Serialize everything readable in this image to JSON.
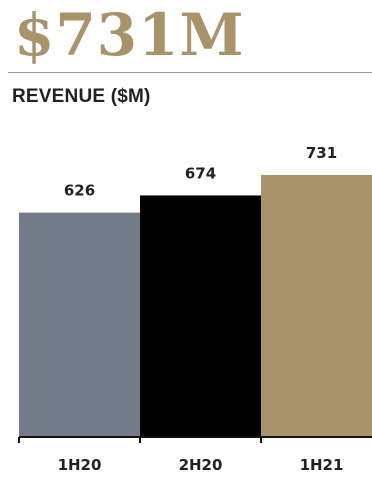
{
  "header": {
    "headline": "$731M",
    "headline_color": "#a8936a"
  },
  "chart_data": {
    "type": "bar",
    "title": "REVENUE ($M)",
    "categories": [
      "1H20",
      "2H20",
      "1H21"
    ],
    "values": [
      626,
      674,
      731
    ],
    "data_labels": [
      "626",
      "674",
      "731"
    ],
    "colors": [
      "#737b88",
      "#000000",
      "#a8936a"
    ],
    "ylim": [
      0,
      731
    ],
    "xlabel": "",
    "ylabel": "",
    "grid": false,
    "legend": "none"
  }
}
